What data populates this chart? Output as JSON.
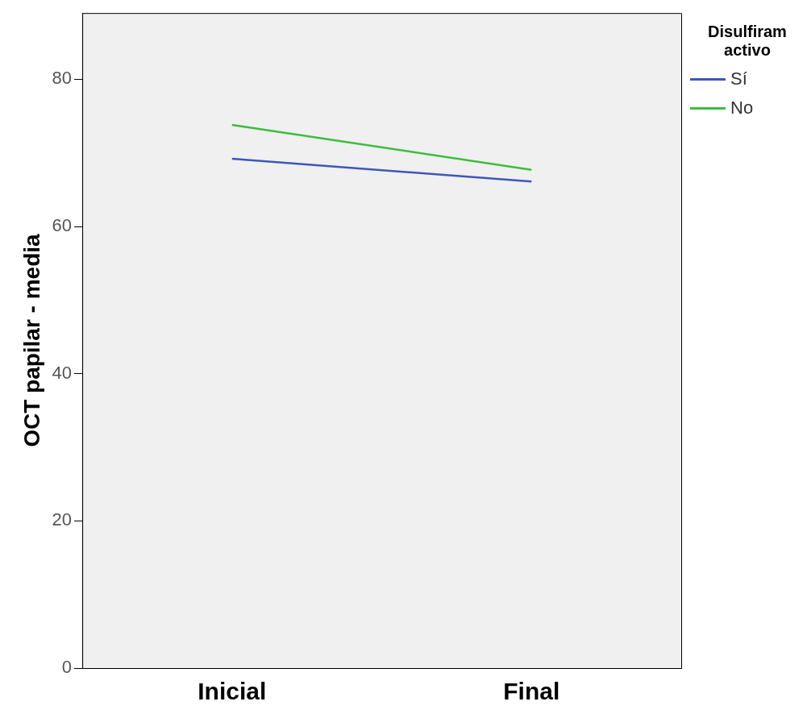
{
  "chart_data": {
    "type": "line",
    "categories": [
      "Inicial",
      "Final"
    ],
    "ylabel": "OCT papilar - media",
    "legend_title": "Disulfiram activo",
    "legend": "top right",
    "grid": false,
    "marker": "none",
    "ylim": [
      0,
      89
    ],
    "yticks": [
      0,
      20,
      40,
      60,
      80
    ],
    "series": [
      {
        "name": "Sí",
        "color": "#3f57b7",
        "values": [
          69.2,
          66.1
        ]
      },
      {
        "name": "No",
        "color": "#3dbd3d",
        "values": [
          73.8,
          67.7
        ]
      }
    ]
  }
}
